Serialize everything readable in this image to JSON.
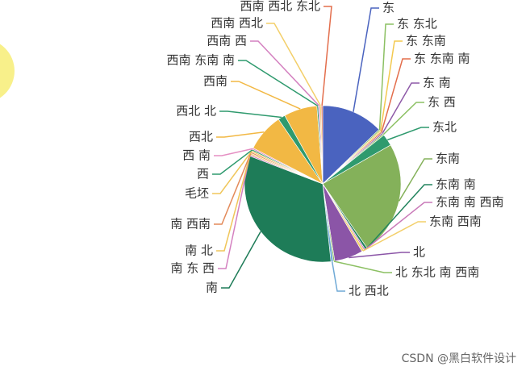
{
  "chart_data": {
    "type": "pie",
    "categories": [
      "东",
      "东 东北",
      "东 东南",
      "东 东南 南",
      "东 南",
      "东 西",
      "东北",
      "东南",
      "东南 南",
      "东南 南 西南",
      "东南 西南",
      "北",
      "北 东北 南 西南",
      "北 西北",
      "南",
      "南 东 西",
      "南 北",
      "南 西南",
      "毛坯",
      "西",
      "西 南",
      "西北",
      "西北 北",
      "西南",
      "西南 东南 南",
      "西南 西",
      "西南 西北",
      "西南 西北 东北"
    ],
    "values": [
      13,
      0.3,
      0.3,
      0.3,
      0.3,
      0.3,
      2.5,
      24,
      0.5,
      0.3,
      0.5,
      6,
      0.3,
      0.5,
      33,
      0.3,
      0.3,
      0.3,
      0.3,
      0.3,
      0.3,
      8,
      1.5,
      7,
      0.3,
      0.3,
      0.3,
      0.3
    ],
    "colors": [
      "#4a63bf",
      "#8cc063",
      "#f3c94f",
      "#e36e4c",
      "#8e5aa8",
      "#8cc063",
      "#2f9a6e",
      "#84b15a",
      "#22845e",
      "#c979b8",
      "#f3cf6a",
      "#8b55a7",
      "#8cc063",
      "#6fa9d6",
      "#1e7c58",
      "#d481c0",
      "#f0c65a",
      "#e38a5a",
      "#f0c65a",
      "#2f9a6e",
      "#e58fc3",
      "#f2b844",
      "#2f9a6e",
      "#f2b844",
      "#2f9a6e",
      "#d481c0",
      "#f3cf6a",
      "#e36e4c"
    ]
  },
  "watermark": "CSDN @黑白软件设计"
}
